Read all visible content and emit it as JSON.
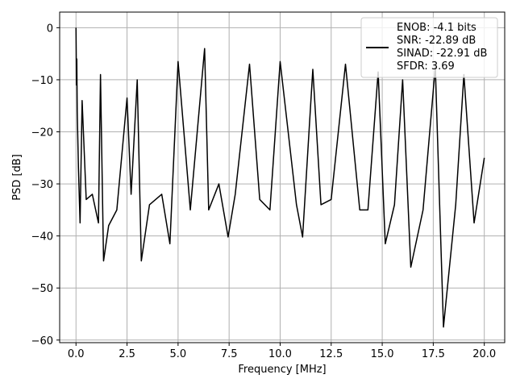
{
  "chart_data": {
    "type": "line",
    "xlabel": "Frequency [MHz]",
    "ylabel": "PSD [dB]",
    "xlim": [
      -0.8,
      21.0
    ],
    "ylim": [
      -60.5,
      3.0
    ],
    "xticks": [
      0.0,
      2.5,
      5.0,
      7.5,
      10.0,
      12.5,
      15.0,
      17.5,
      20.0
    ],
    "xtick_labels": [
      "0.0",
      "2.5",
      "5.0",
      "7.5",
      "10.0",
      "12.5",
      "15.0",
      "17.5",
      "20.0"
    ],
    "yticks": [
      0,
      -10,
      -20,
      -30,
      -40,
      -50,
      -60
    ],
    "ytick_labels": [
      "0",
      "−10",
      "−20",
      "−30",
      "−40",
      "−50",
      "−60"
    ],
    "grid": true,
    "line_color": "#000000",
    "grid_color": "#b0b0b0",
    "legend": {
      "placement": "top-right",
      "lines": [
        "ENOB: -4.1 bits",
        "SNR: -22.89 dB",
        "SINAD: -22.91 dB",
        "SFDR: 3.69"
      ]
    },
    "series": [
      {
        "points": [
          [
            0.0,
            0.0
          ],
          [
            0.01,
            -4.5
          ],
          [
            0.02,
            -11.0
          ],
          [
            0.04,
            -6.0
          ],
          [
            0.06,
            -16.0
          ],
          [
            0.12,
            -27.0
          ],
          [
            0.2,
            -37.5
          ],
          [
            0.3,
            -14.0
          ],
          [
            0.5,
            -33.0
          ],
          [
            0.8,
            -32.0
          ],
          [
            1.1,
            -37.5
          ],
          [
            1.2,
            -9.0
          ],
          [
            1.35,
            -44.8
          ],
          [
            1.6,
            -38.0
          ],
          [
            2.0,
            -35.0
          ],
          [
            2.5,
            -13.5
          ],
          [
            2.7,
            -32.0
          ],
          [
            3.0,
            -10.0
          ],
          [
            3.2,
            -44.8
          ],
          [
            3.6,
            -34.0
          ],
          [
            4.2,
            -32.0
          ],
          [
            4.6,
            -41.5
          ],
          [
            5.0,
            -6.5
          ],
          [
            5.6,
            -35.0
          ],
          [
            6.3,
            -4.0
          ],
          [
            6.5,
            -35.0
          ],
          [
            7.0,
            -30.0
          ],
          [
            7.45,
            -40.2
          ],
          [
            7.8,
            -32.0
          ],
          [
            8.5,
            -7.0
          ],
          [
            9.0,
            -33.0
          ],
          [
            9.5,
            -35.0
          ],
          [
            10.0,
            -6.5
          ],
          [
            10.8,
            -34.0
          ],
          [
            11.1,
            -40.2
          ],
          [
            11.6,
            -8.0
          ],
          [
            12.0,
            -34.0
          ],
          [
            12.5,
            -33.0
          ],
          [
            13.2,
            -7.0
          ],
          [
            13.9,
            -35.0
          ],
          [
            14.3,
            -35.0
          ],
          [
            14.8,
            -8.5
          ],
          [
            15.15,
            -41.5
          ],
          [
            15.6,
            -34.0
          ],
          [
            16.0,
            -10.0
          ],
          [
            16.4,
            -46.0
          ],
          [
            17.0,
            -35.0
          ],
          [
            17.6,
            -7.5
          ],
          [
            18.0,
            -57.5
          ],
          [
            18.6,
            -34.0
          ],
          [
            19.0,
            -9.0
          ],
          [
            19.5,
            -37.5
          ],
          [
            20.0,
            -25.0
          ]
        ]
      }
    ]
  }
}
